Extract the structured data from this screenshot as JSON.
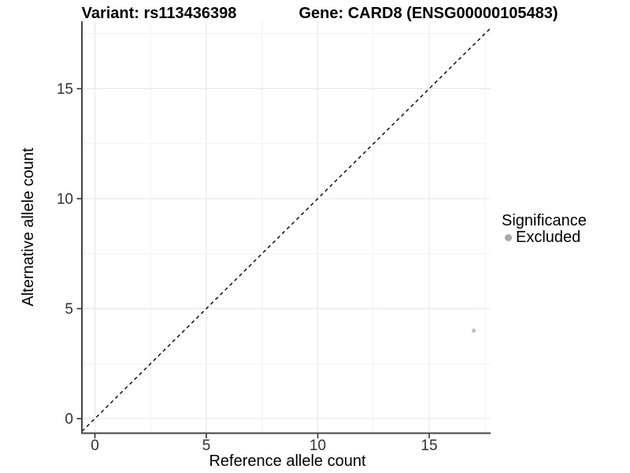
{
  "figure": {
    "title_left": "Variant: rs113436398",
    "title_right": "Gene: CARD8 (ENSG00000105483)"
  },
  "chart_data": {
    "type": "scatter",
    "title": "Variant: rs113436398 | Gene: CARD8 (ENSG00000105483)",
    "xlabel": "Reference allele count",
    "ylabel": "Alternative allele count",
    "xlim": [
      -0.58,
      17.76
    ],
    "ylim": [
      -0.66,
      18.06
    ],
    "x_ticks": [
      0,
      5,
      10,
      15
    ],
    "y_ticks": [
      0,
      5,
      10,
      15
    ],
    "x_minor_ticks": [
      2.5,
      7.5,
      12.5,
      17.5
    ],
    "y_minor_ticks": [
      2.5,
      7.5,
      12.5,
      17.5
    ],
    "grid": true,
    "series": [
      {
        "name": "Excluded",
        "points": [
          {
            "x": 17,
            "y": 4
          }
        ],
        "color": "#c2c2c2",
        "point_radius": 2.6
      }
    ],
    "reference_line": {
      "type": "identity y=x",
      "style": "dashed",
      "color": "#000000"
    },
    "legend": {
      "title": "Significance",
      "position": "right",
      "items": [
        {
          "label": "Excluded",
          "color": "#a9a9a9"
        }
      ]
    }
  },
  "colors": {
    "background": "#ffffff",
    "grid_major": "#e5e5e5",
    "grid_minor": "#f1f1f1",
    "axis_line": "#454545",
    "tick_mark": "#333333",
    "tick_label": "#303030",
    "text": "#000000"
  }
}
